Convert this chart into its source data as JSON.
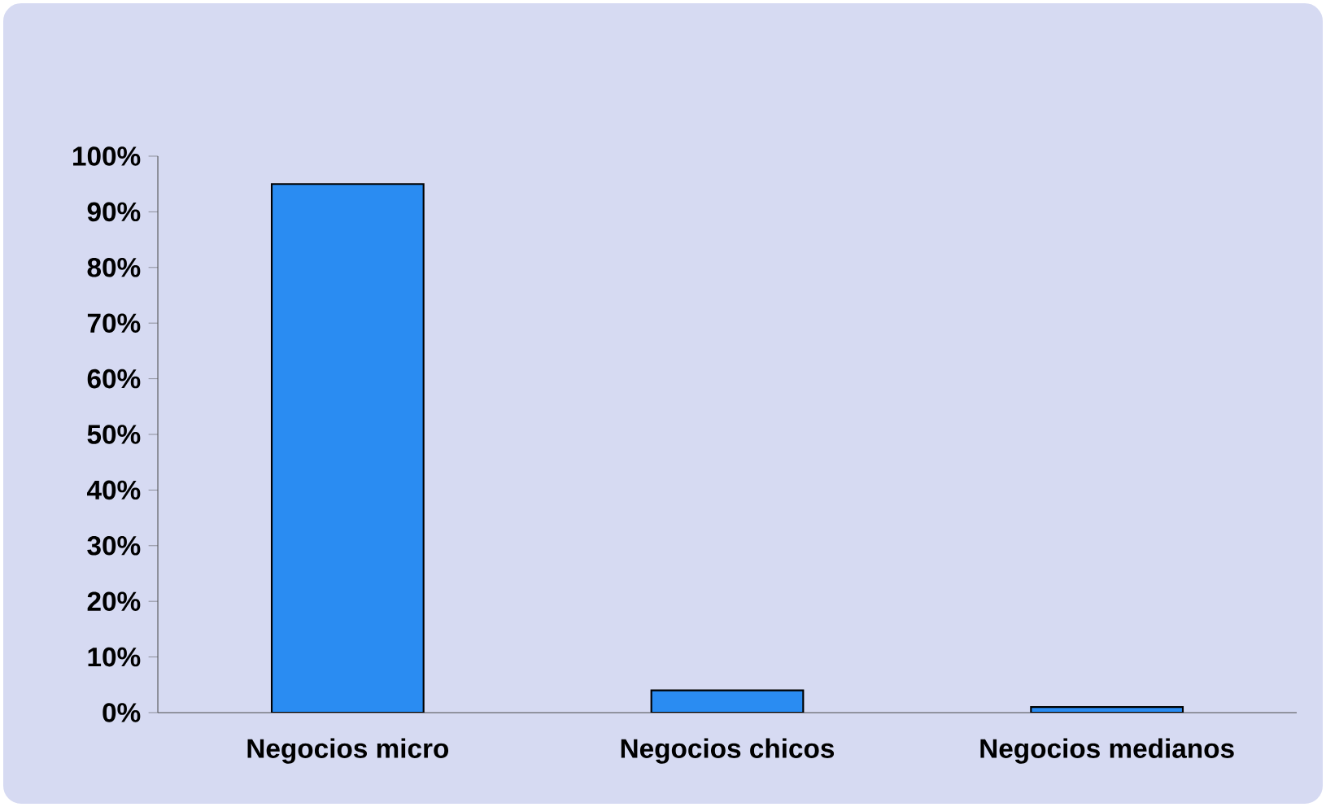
{
  "chart_data": {
    "type": "bar",
    "categories": [
      "Negocios micro",
      "Negocios chicos",
      "Negocios medianos"
    ],
    "values": [
      95,
      4,
      1
    ],
    "color": "#2a8cf2",
    "ylim": [
      0,
      100
    ],
    "yticks": [
      {
        "value": 0,
        "label": "0%"
      },
      {
        "value": 10,
        "label": "10%"
      },
      {
        "value": 20,
        "label": "20%"
      },
      {
        "value": 30,
        "label": "30%"
      },
      {
        "value": 40,
        "label": "40%"
      },
      {
        "value": 50,
        "label": "50%"
      },
      {
        "value": 60,
        "label": "60%"
      },
      {
        "value": 70,
        "label": "70%"
      },
      {
        "value": 80,
        "label": "80%"
      },
      {
        "value": 90,
        "label": "90%"
      },
      {
        "value": 100,
        "label": "100%"
      }
    ],
    "grid": false
  }
}
